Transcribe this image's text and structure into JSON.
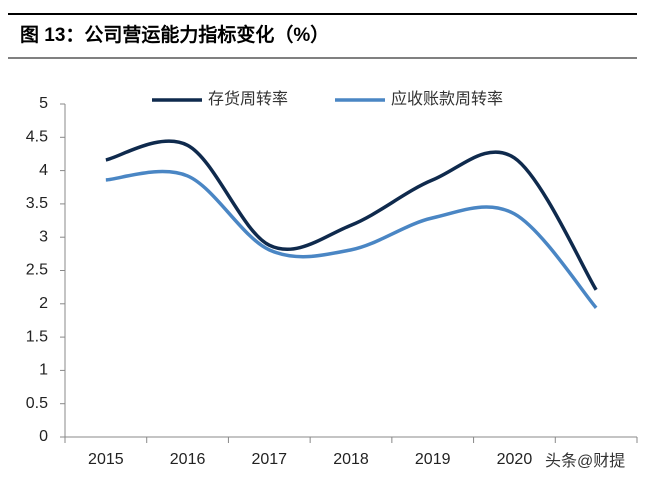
{
  "chart_data": {
    "type": "line",
    "title": "图 13：公司营运能力指标变化（%）",
    "categories": [
      "2015",
      "2016",
      "2017",
      "2018",
      "2019",
      "2020",
      null
    ],
    "series": [
      {
        "name": "存货周转率",
        "color": "#0f2a4d",
        "values": [
          4.16,
          4.38,
          2.88,
          3.18,
          3.86,
          4.19,
          2.21
        ]
      },
      {
        "name": "应收账款周转率",
        "color": "#4a86c4",
        "values": [
          3.86,
          3.92,
          2.81,
          2.81,
          3.29,
          3.35,
          1.94
        ]
      }
    ],
    "ylim": [
      0,
      5
    ],
    "yticks": [
      0,
      0.5,
      1,
      1.5,
      2,
      2.5,
      3,
      3.5,
      4,
      4.5,
      5
    ],
    "smooth": true,
    "legend": "top",
    "watermark": "头条@财提"
  }
}
